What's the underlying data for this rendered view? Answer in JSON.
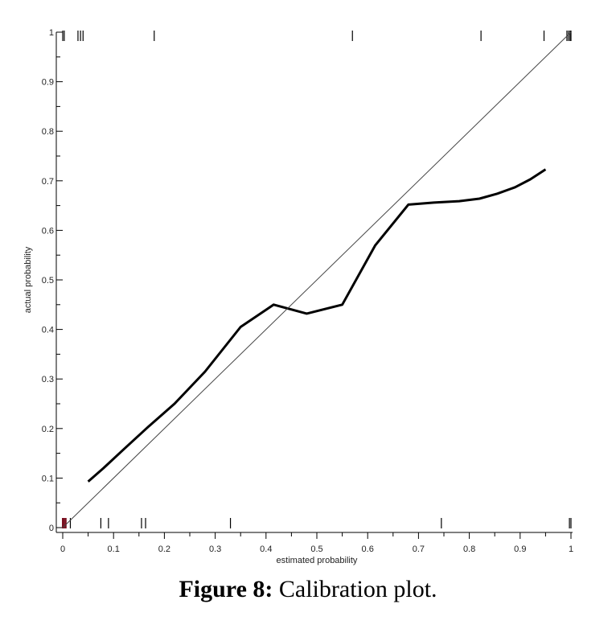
{
  "chart_data": {
    "type": "line",
    "xlabel": "estimated probability",
    "ylabel": "actual probability",
    "xlim": [
      0,
      1
    ],
    "ylim": [
      0,
      1
    ],
    "x_ticks": [
      "0",
      "0.1",
      "0.2",
      "0.3",
      "0.4",
      "0.5",
      "0.6",
      "0.7",
      "0.8",
      "0.9",
      "1"
    ],
    "y_ticks": [
      "0",
      "0.1",
      "0.2",
      "0.3",
      "0.4",
      "0.5",
      "0.6",
      "0.7",
      "0.8",
      "0.9",
      "1"
    ],
    "grid": false,
    "series": [
      {
        "kind": "calibration-curve",
        "color": "#000000",
        "points": [
          [
            0.05,
            0.093
          ],
          [
            0.08,
            0.12
          ],
          [
            0.12,
            0.158
          ],
          [
            0.17,
            0.205
          ],
          [
            0.22,
            0.25
          ],
          [
            0.28,
            0.315
          ],
          [
            0.35,
            0.405
          ],
          [
            0.415,
            0.45
          ],
          [
            0.48,
            0.432
          ],
          [
            0.55,
            0.45
          ],
          [
            0.615,
            0.57
          ],
          [
            0.68,
            0.652
          ],
          [
            0.73,
            0.656
          ],
          [
            0.78,
            0.659
          ],
          [
            0.82,
            0.664
          ],
          [
            0.855,
            0.674
          ],
          [
            0.89,
            0.687
          ],
          [
            0.92,
            0.703
          ],
          [
            0.95,
            0.723
          ]
        ]
      },
      {
        "kind": "reference-diagonal",
        "color": "#444444",
        "points": [
          [
            0,
            0
          ],
          [
            1,
            1
          ]
        ]
      }
    ],
    "rug_top": [
      0.0,
      0.003,
      0.03,
      0.035,
      0.04,
      0.18,
      0.57,
      0.823,
      0.947,
      0.992,
      0.995,
      0.998,
      1.0
    ],
    "rug_bottom": [
      0.0,
      0.003,
      0.006,
      0.015,
      0.075,
      0.09,
      0.155,
      0.163,
      0.33,
      0.745,
      0.997,
      1.0
    ],
    "rug_bottom_highlight_color": "#7a1020"
  },
  "caption": {
    "label": "Figure 8:",
    "text": " Calibration plot."
  }
}
